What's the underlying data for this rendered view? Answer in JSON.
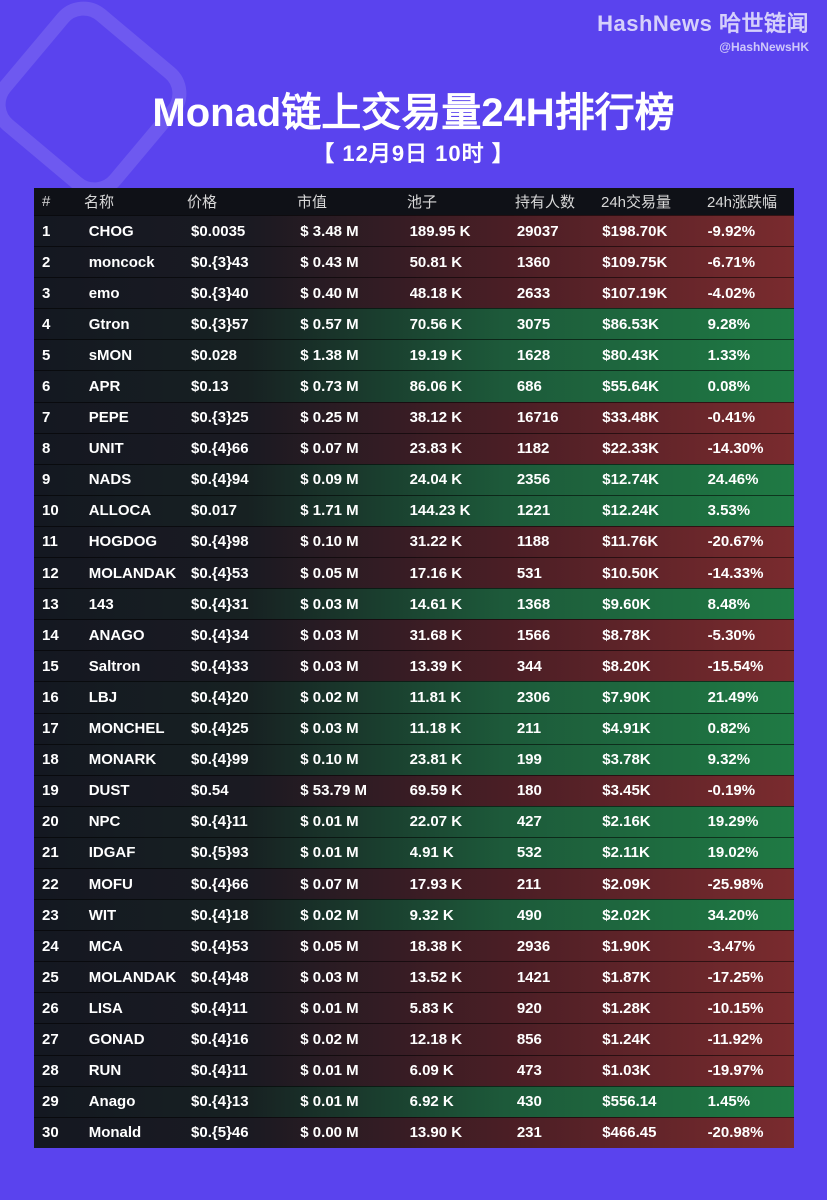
{
  "brand": {
    "name": "HashNews 哈世链闻",
    "handle": "@HashNewsHK"
  },
  "title": "Monad链上交易量24H排行榜",
  "subtitle": "【 12月9日 10时 】",
  "colors": {
    "background": "#5a43ee",
    "up": "#1f7a44",
    "down": "#7a2b2e"
  },
  "table": {
    "headers": {
      "rank": "#",
      "name": "名称",
      "price": "价格",
      "mcap": "市值",
      "pool": "池子",
      "holders": "持有人数",
      "volume": "24h交易量",
      "change": "24h涨跌幅"
    },
    "rows": [
      {
        "rank": "1",
        "name": "CHOG",
        "price": "$0.0035",
        "mcap": "$ 3.48 M",
        "pool": "189.95 K",
        "holders": "29037",
        "volume": "$198.70K",
        "change": "-9.92%",
        "trend": "down"
      },
      {
        "rank": "2",
        "name": "moncock",
        "price": "$0.{3}43",
        "mcap": "$ 0.43 M",
        "pool": "50.81 K",
        "holders": "1360",
        "volume": "$109.75K",
        "change": "-6.71%",
        "trend": "down"
      },
      {
        "rank": "3",
        "name": "emo",
        "price": "$0.{3}40",
        "mcap": "$ 0.40 M",
        "pool": "48.18 K",
        "holders": "2633",
        "volume": "$107.19K",
        "change": "-4.02%",
        "trend": "down"
      },
      {
        "rank": "4",
        "name": "Gtron",
        "price": "$0.{3}57",
        "mcap": "$ 0.57 M",
        "pool": "70.56 K",
        "holders": "3075",
        "volume": "$86.53K",
        "change": "9.28%",
        "trend": "up"
      },
      {
        "rank": "5",
        "name": "sMON",
        "price": "$0.028",
        "mcap": "$ 1.38 M",
        "pool": "19.19 K",
        "holders": "1628",
        "volume": "$80.43K",
        "change": "1.33%",
        "trend": "up"
      },
      {
        "rank": "6",
        "name": "APR",
        "price": "$0.13",
        "mcap": "$ 0.73 M",
        "pool": "86.06 K",
        "holders": "686",
        "volume": "$55.64K",
        "change": "0.08%",
        "trend": "up"
      },
      {
        "rank": "7",
        "name": "PEPE",
        "price": "$0.{3}25",
        "mcap": "$ 0.25 M",
        "pool": "38.12 K",
        "holders": "16716",
        "volume": "$33.48K",
        "change": "-0.41%",
        "trend": "down"
      },
      {
        "rank": "8",
        "name": "UNIT",
        "price": "$0.{4}66",
        "mcap": "$ 0.07 M",
        "pool": "23.83 K",
        "holders": "1182",
        "volume": "$22.33K",
        "change": "-14.30%",
        "trend": "down"
      },
      {
        "rank": "9",
        "name": "NADS",
        "price": "$0.{4}94",
        "mcap": "$ 0.09 M",
        "pool": "24.04 K",
        "holders": "2356",
        "volume": "$12.74K",
        "change": "24.46%",
        "trend": "up"
      },
      {
        "rank": "10",
        "name": "ALLOCA",
        "price": "$0.017",
        "mcap": "$ 1.71 M",
        "pool": "144.23 K",
        "holders": "1221",
        "volume": "$12.24K",
        "change": "3.53%",
        "trend": "up"
      },
      {
        "rank": "11",
        "name": "HOGDOG",
        "price": "$0.{4}98",
        "mcap": "$ 0.10 M",
        "pool": "31.22 K",
        "holders": "1188",
        "volume": "$11.76K",
        "change": "-20.67%",
        "trend": "down"
      },
      {
        "rank": "12",
        "name": "MOLANDAK",
        "price": "$0.{4}53",
        "mcap": "$ 0.05 M",
        "pool": "17.16 K",
        "holders": "531",
        "volume": "$10.50K",
        "change": "-14.33%",
        "trend": "down"
      },
      {
        "rank": "13",
        "name": "143",
        "price": "$0.{4}31",
        "mcap": "$ 0.03 M",
        "pool": "14.61 K",
        "holders": "1368",
        "volume": "$9.60K",
        "change": "8.48%",
        "trend": "up"
      },
      {
        "rank": "14",
        "name": "ANAGO",
        "price": "$0.{4}34",
        "mcap": "$ 0.03 M",
        "pool": "31.68 K",
        "holders": "1566",
        "volume": "$8.78K",
        "change": "-5.30%",
        "trend": "down"
      },
      {
        "rank": "15",
        "name": "Saltron",
        "price": "$0.{4}33",
        "mcap": "$ 0.03 M",
        "pool": "13.39 K",
        "holders": "344",
        "volume": "$8.20K",
        "change": "-15.54%",
        "trend": "down"
      },
      {
        "rank": "16",
        "name": "LBJ",
        "price": "$0.{4}20",
        "mcap": "$ 0.02 M",
        "pool": "11.81 K",
        "holders": "2306",
        "volume": "$7.90K",
        "change": "21.49%",
        "trend": "up"
      },
      {
        "rank": "17",
        "name": "MONCHEL",
        "price": "$0.{4}25",
        "mcap": "$ 0.03 M",
        "pool": "11.18 K",
        "holders": "211",
        "volume": "$4.91K",
        "change": "0.82%",
        "trend": "up"
      },
      {
        "rank": "18",
        "name": "MONARK",
        "price": "$0.{4}99",
        "mcap": "$ 0.10 M",
        "pool": "23.81 K",
        "holders": "199",
        "volume": "$3.78K",
        "change": "9.32%",
        "trend": "up"
      },
      {
        "rank": "19",
        "name": "DUST",
        "price": "$0.54",
        "mcap": "$ 53.79 M",
        "pool": "69.59 K",
        "holders": "180",
        "volume": "$3.45K",
        "change": "-0.19%",
        "trend": "down"
      },
      {
        "rank": "20",
        "name": "NPC",
        "price": "$0.{4}11",
        "mcap": "$ 0.01 M",
        "pool": "22.07 K",
        "holders": "427",
        "volume": "$2.16K",
        "change": "19.29%",
        "trend": "up"
      },
      {
        "rank": "21",
        "name": "IDGAF",
        "price": "$0.{5}93",
        "mcap": "$ 0.01 M",
        "pool": "4.91 K",
        "holders": "532",
        "volume": "$2.11K",
        "change": "19.02%",
        "trend": "up"
      },
      {
        "rank": "22",
        "name": "MOFU",
        "price": "$0.{4}66",
        "mcap": "$ 0.07 M",
        "pool": "17.93 K",
        "holders": "211",
        "volume": "$2.09K",
        "change": "-25.98%",
        "trend": "down"
      },
      {
        "rank": "23",
        "name": "WIT",
        "price": "$0.{4}18",
        "mcap": "$ 0.02 M",
        "pool": "9.32 K",
        "holders": "490",
        "volume": "$2.02K",
        "change": "34.20%",
        "trend": "up"
      },
      {
        "rank": "24",
        "name": "MCA",
        "price": "$0.{4}53",
        "mcap": "$ 0.05 M",
        "pool": "18.38 K",
        "holders": "2936",
        "volume": "$1.90K",
        "change": "-3.47%",
        "trend": "down"
      },
      {
        "rank": "25",
        "name": "MOLANDAK",
        "price": "$0.{4}48",
        "mcap": "$ 0.03 M",
        "pool": "13.52 K",
        "holders": "1421",
        "volume": "$1.87K",
        "change": "-17.25%",
        "trend": "down"
      },
      {
        "rank": "26",
        "name": "LISA",
        "price": "$0.{4}11",
        "mcap": "$ 0.01 M",
        "pool": "5.83 K",
        "holders": "920",
        "volume": "$1.28K",
        "change": "-10.15%",
        "trend": "down"
      },
      {
        "rank": "27",
        "name": "GONAD",
        "price": "$0.{4}16",
        "mcap": "$ 0.02 M",
        "pool": "12.18 K",
        "holders": "856",
        "volume": "$1.24K",
        "change": "-11.92%",
        "trend": "down"
      },
      {
        "rank": "28",
        "name": "RUN",
        "price": "$0.{4}11",
        "mcap": "$ 0.01 M",
        "pool": "6.09 K",
        "holders": "473",
        "volume": "$1.03K",
        "change": "-19.97%",
        "trend": "down"
      },
      {
        "rank": "29",
        "name": "Anago",
        "price": "$0.{4}13",
        "mcap": "$ 0.01 M",
        "pool": "6.92 K",
        "holders": "430",
        "volume": "$556.14",
        "change": "1.45%",
        "trend": "up"
      },
      {
        "rank": "30",
        "name": "Monald",
        "price": "$0.{5}46",
        "mcap": "$ 0.00 M",
        "pool": "13.90 K",
        "holders": "231",
        "volume": "$466.45",
        "change": "-20.98%",
        "trend": "down"
      }
    ]
  }
}
